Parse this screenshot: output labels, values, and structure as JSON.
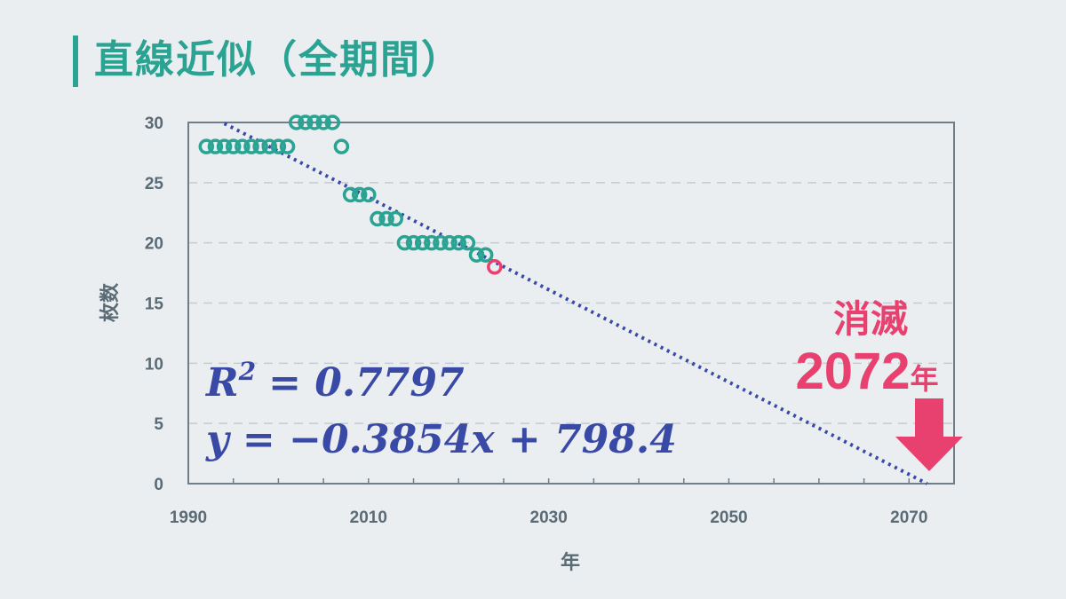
{
  "title": "直線近似（全期間）",
  "colors": {
    "accent": "#2aa393",
    "point": "#2aa393",
    "highlight_point": "#e8416f",
    "trendline": "#3949a6",
    "callout": "#e8416f",
    "axis_text": "#5b6b76",
    "plot_border": "#6f7e88",
    "grid": "#c3ccd3"
  },
  "chart_data": {
    "type": "scatter",
    "xlabel": "年",
    "ylabel": "枚数",
    "xlim": [
      1990,
      2075
    ],
    "ylim": [
      0,
      30
    ],
    "x_ticks": [
      1990,
      2010,
      2030,
      2050,
      2070
    ],
    "y_ticks": [
      0,
      5,
      10,
      15,
      20,
      25,
      30
    ],
    "grid": "horizontal dashed",
    "series": [
      {
        "marker": "hollow circle",
        "points": [
          [
            1992,
            28
          ],
          [
            1993,
            28
          ],
          [
            1994,
            28
          ],
          [
            1995,
            28
          ],
          [
            1996,
            28
          ],
          [
            1997,
            28
          ],
          [
            1998,
            28
          ],
          [
            1999,
            28
          ],
          [
            2000,
            28
          ],
          [
            2001,
            28
          ],
          [
            2002,
            30
          ],
          [
            2003,
            30
          ],
          [
            2004,
            30
          ],
          [
            2005,
            30
          ],
          [
            2006,
            30
          ],
          [
            2007,
            28
          ],
          [
            2008,
            24
          ],
          [
            2009,
            24
          ],
          [
            2010,
            24
          ],
          [
            2011,
            22
          ],
          [
            2012,
            22
          ],
          [
            2013,
            22
          ],
          [
            2014,
            20
          ],
          [
            2015,
            20
          ],
          [
            2016,
            20
          ],
          [
            2017,
            20
          ],
          [
            2018,
            20
          ],
          [
            2019,
            20
          ],
          [
            2020,
            20
          ],
          [
            2021,
            20
          ],
          [
            2022,
            19
          ],
          [
            2023,
            19
          ]
        ]
      },
      {
        "marker": "hollow circle",
        "highlight": true,
        "points": [
          [
            2024,
            18
          ]
        ]
      }
    ],
    "trendline": {
      "style": "dotted",
      "slope": -0.3854,
      "intercept": 798.4,
      "x_range": [
        1994,
        2072
      ]
    },
    "annotations": {
      "r_squared_label": "R",
      "r_squared_power": "2",
      "r_squared_value": "= 0.7797",
      "equation": "y = −0.3854x + 798.4",
      "callout_line1": "消滅",
      "callout_year": "2072",
      "callout_suffix": "年"
    }
  }
}
